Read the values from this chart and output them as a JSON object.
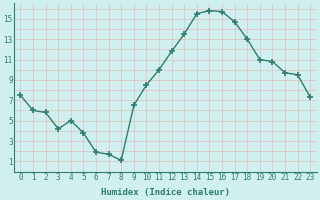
{
  "x": [
    0,
    1,
    2,
    3,
    4,
    5,
    6,
    7,
    8,
    9,
    10,
    11,
    12,
    13,
    14,
    15,
    16,
    17,
    18,
    19,
    20,
    21,
    22,
    23
  ],
  "y": [
    7.5,
    6.0,
    5.8,
    4.2,
    5.0,
    3.8,
    1.9,
    1.7,
    1.1,
    6.5,
    8.5,
    10.0,
    11.8,
    13.5,
    15.5,
    15.8,
    15.7,
    14.7,
    13.0,
    11.0,
    10.8,
    9.7,
    9.5,
    7.3
  ],
  "line_color": "#2e7d6e",
  "marker": "+",
  "markersize": 4,
  "linewidth": 1.0,
  "bg_color": "#cff0ee",
  "grid_color": "#e8b0b0",
  "xlabel": "Humidex (Indice chaleur)",
  "xlim": [
    -0.5,
    23.5
  ],
  "ylim": [
    0,
    16.5
  ],
  "yticks": [
    1,
    3,
    5,
    7,
    9,
    11,
    13,
    15
  ],
  "xticks": [
    0,
    1,
    2,
    3,
    4,
    5,
    6,
    7,
    8,
    9,
    10,
    11,
    12,
    13,
    14,
    15,
    16,
    17,
    18,
    19,
    20,
    21,
    22,
    23
  ],
  "xlabel_fontsize": 6.5,
  "tick_fontsize": 5.5,
  "xlabel_color": "#2e7d6e",
  "tick_color": "#2e7d6e",
  "axis_color": "#2e7d6e"
}
